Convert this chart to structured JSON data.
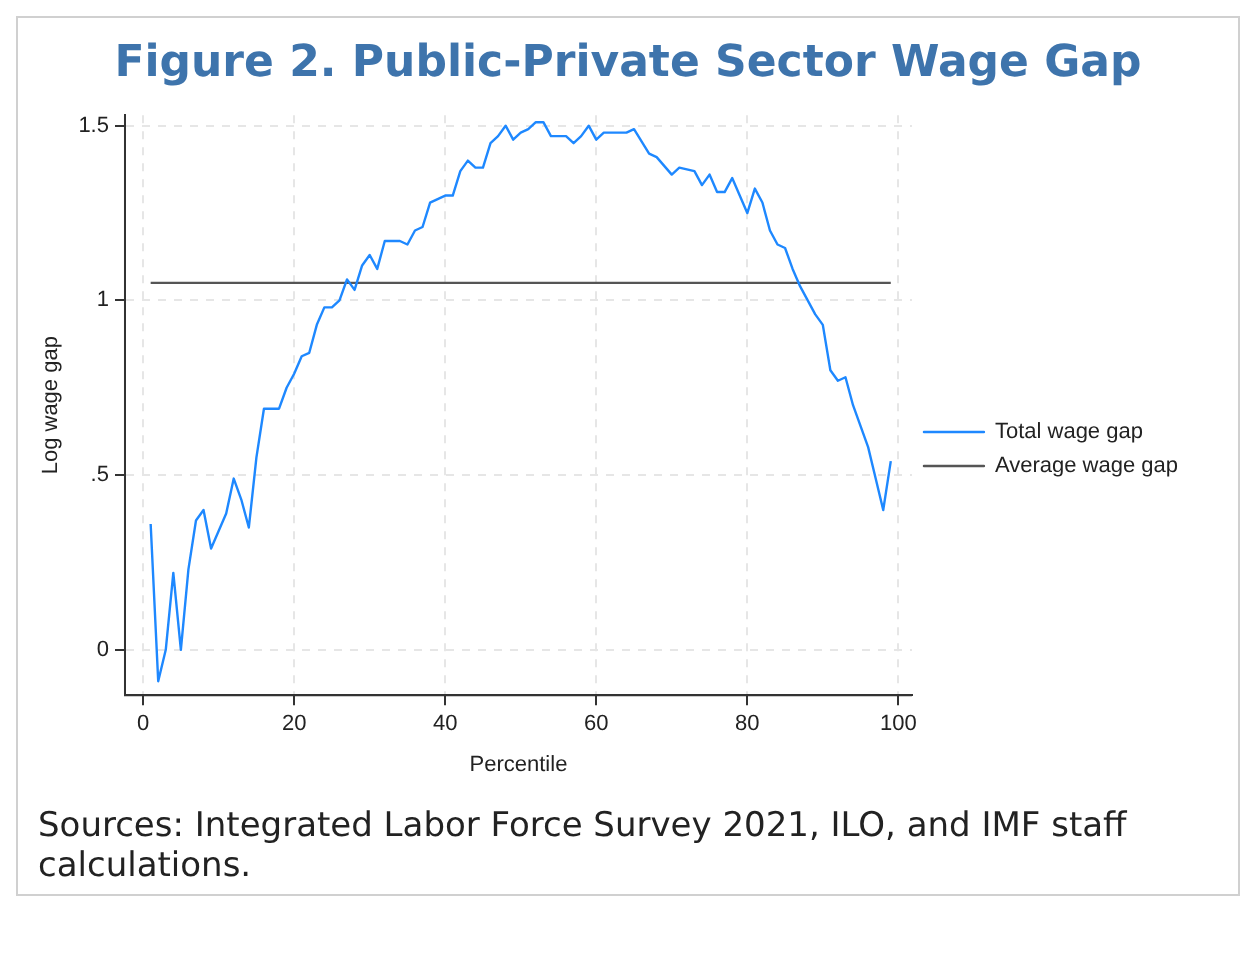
{
  "chart_data": {
    "type": "line",
    "title": "Figure 2. Public-Private Sector Wage Gap",
    "xlabel": "Percentile",
    "ylabel": "Log wage gap",
    "xlim": [
      -2.4,
      101.8
    ],
    "xticks": [
      0,
      20,
      40,
      60,
      80,
      100
    ],
    "ylim": [
      -0.13,
      1.53
    ],
    "yticks": [
      0,
      {
        "value": 0.5,
        "label": ".5"
      },
      1,
      1.5
    ],
    "grid": true,
    "legend": "right",
    "marker": "none",
    "line_style": "solid",
    "series": [
      {
        "name": "Total wage gap",
        "color": "#1e88ff",
        "x": [
          1,
          2,
          3,
          4,
          5,
          6,
          7,
          8,
          9,
          10,
          11,
          12,
          13,
          14,
          15,
          16,
          17,
          18,
          19,
          20,
          21,
          22,
          23,
          24,
          25,
          26,
          27,
          28,
          29,
          30,
          31,
          32,
          33,
          34,
          35,
          36,
          37,
          38,
          39,
          40,
          41,
          42,
          43,
          44,
          45,
          46,
          47,
          48,
          49,
          50,
          51,
          52,
          53,
          54,
          55,
          56,
          57,
          58,
          59,
          60,
          61,
          62,
          63,
          64,
          65,
          67,
          68,
          70,
          71,
          73,
          74,
          75,
          76,
          77,
          78,
          80,
          81,
          82,
          83,
          84,
          85,
          86,
          87,
          89,
          90,
          91,
          92,
          93,
          94,
          95,
          96,
          97,
          98,
          99
        ],
        "values": [
          0.36,
          -0.09,
          0.0,
          0.22,
          0.0,
          0.23,
          0.37,
          0.4,
          0.29,
          0.34,
          0.39,
          0.49,
          0.43,
          0.35,
          0.55,
          0.69,
          0.69,
          0.69,
          0.75,
          0.79,
          0.84,
          0.85,
          0.93,
          0.98,
          0.98,
          1.0,
          1.06,
          1.03,
          1.1,
          1.13,
          1.09,
          1.17,
          1.17,
          1.17,
          1.16,
          1.2,
          1.21,
          1.28,
          1.29,
          1.3,
          1.3,
          1.37,
          1.4,
          1.38,
          1.38,
          1.45,
          1.47,
          1.5,
          1.46,
          1.48,
          1.49,
          1.51,
          1.51,
          1.47,
          1.47,
          1.47,
          1.45,
          1.47,
          1.5,
          1.46,
          1.48,
          1.48,
          1.48,
          1.48,
          1.49,
          1.42,
          1.41,
          1.36,
          1.38,
          1.37,
          1.33,
          1.36,
          1.31,
          1.31,
          1.35,
          1.25,
          1.32,
          1.28,
          1.2,
          1.16,
          1.15,
          1.09,
          1.04,
          0.96,
          0.93,
          0.8,
          0.77,
          0.78,
          0.7,
          0.64,
          0.58,
          0.49,
          0.4,
          0.54
        ]
      },
      {
        "name": "Average wage gap",
        "color": "#555555",
        "x": [
          1,
          99
        ],
        "values": [
          1.05,
          1.05
        ]
      }
    ],
    "annotations": [
      "Sources: Integrated Labor Force Survey 2021, ILO, and IMF staff calculations."
    ]
  }
}
